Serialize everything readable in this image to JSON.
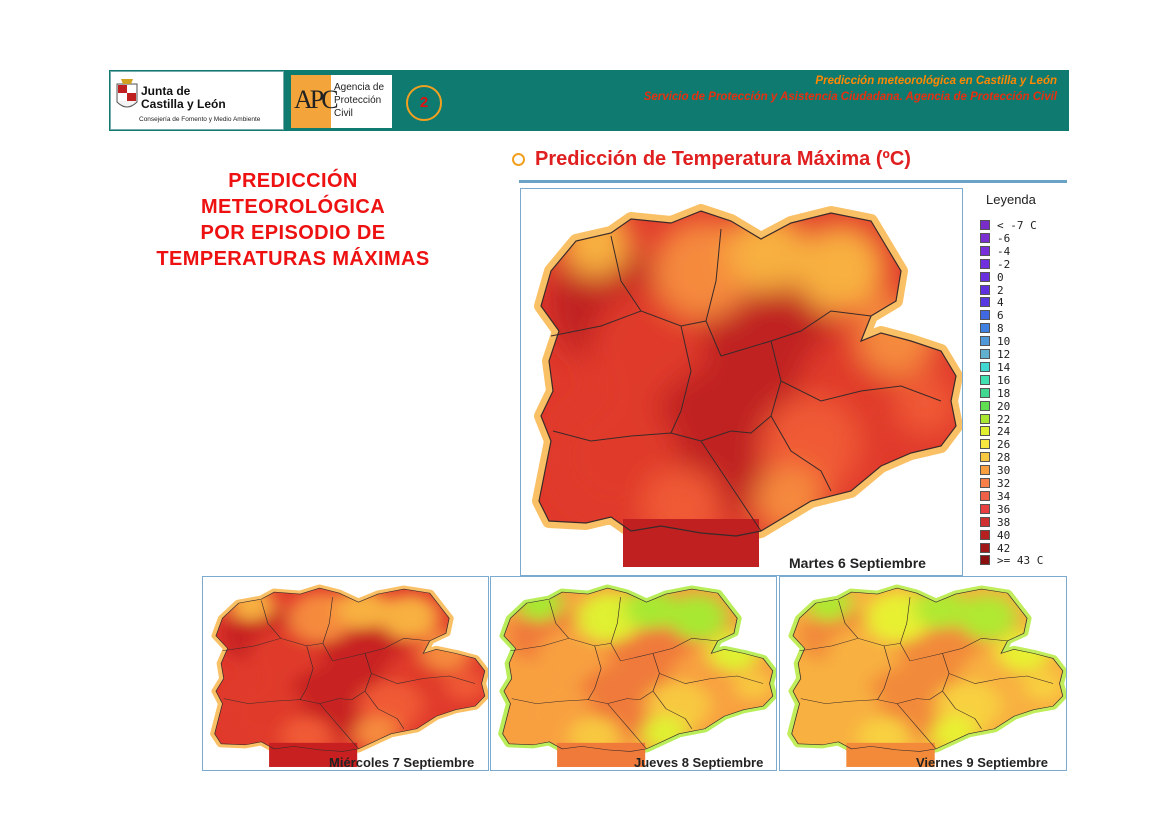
{
  "header": {
    "line1": "Predicción meteorológica en Castilla y León",
    "line2": "Servicio de Protección y Asistencia Ciudadana. Agencia de Protección Civil",
    "slide_number": "2",
    "jcyl_logo": {
      "name_line1": "Junta de",
      "name_line2": "Castilla y León",
      "department": "Consejería de Fomento y Medio Ambiente"
    },
    "apc_logo": {
      "letters": "APC",
      "line1": "Agencia de",
      "line2": "Protección",
      "line3": "Civil"
    }
  },
  "title_lines": [
    "PREDICCIÓN",
    "METEOROLÓGICA",
    "POR EPISODIO DE",
    "TEMPERATURAS MÁXIMAS"
  ],
  "section_heading": "Predicción de Temperatura Máxima (ºC)",
  "legend": {
    "title": "Leyenda",
    "items": [
      {
        "label": "< -7 C",
        "color": "#7a2cc8"
      },
      {
        "label": "-6",
        "color": "#7a30d0"
      },
      {
        "label": "-4",
        "color": "#7a30d8"
      },
      {
        "label": "-2",
        "color": "#7030e0"
      },
      {
        "label": "0",
        "color": "#6a30e0"
      },
      {
        "label": "2",
        "color": "#6030e0"
      },
      {
        "label": "4",
        "color": "#5838e0"
      },
      {
        "label": "6",
        "color": "#4068e0"
      },
      {
        "label": "8",
        "color": "#4080e0"
      },
      {
        "label": "10",
        "color": "#5098d8"
      },
      {
        "label": "12",
        "color": "#60b0d0"
      },
      {
        "label": "14",
        "color": "#40d8d0"
      },
      {
        "label": "16",
        "color": "#40e0b0"
      },
      {
        "label": "18",
        "color": "#40d890"
      },
      {
        "label": "20",
        "color": "#60e050"
      },
      {
        "label": "22",
        "color": "#a8e830"
      },
      {
        "label": "24",
        "color": "#e0f030"
      },
      {
        "label": "26",
        "color": "#f8e840"
      },
      {
        "label": "28",
        "color": "#f8c840"
      },
      {
        "label": "30",
        "color": "#f8a040"
      },
      {
        "label": "32",
        "color": "#f88048"
      },
      {
        "label": "34",
        "color": "#f06048"
      },
      {
        "label": "36",
        "color": "#e84040"
      },
      {
        "label": "38",
        "color": "#d03030"
      },
      {
        "label": "40",
        "color": "#b82020"
      },
      {
        "label": "42",
        "color": "#a01818"
      },
      {
        "label": ">= 43 C",
        "color": "#8a1010"
      }
    ]
  },
  "maps": {
    "main": {
      "day": "Martes 6 Septiembre",
      "palette": [
        "#c02020",
        "#e03a2c",
        "#f05a35",
        "#f58a3c",
        "#f8b040"
      ]
    },
    "small": [
      {
        "day": "Miércoles 7 Septiembre",
        "palette": [
          "#c82020",
          "#e03a2c",
          "#f05a35",
          "#f58a3c",
          "#f8b040"
        ]
      },
      {
        "day": "Jueves 8 Septiembre",
        "palette": [
          "#f07a3a",
          "#f8a040",
          "#f8c840",
          "#e0f030",
          "#a8e830"
        ]
      },
      {
        "day": "Viernes 9 Septiembre",
        "palette": [
          "#f28a3a",
          "#f8b040",
          "#f8d040",
          "#e8f030",
          "#b0e830"
        ]
      }
    ]
  }
}
